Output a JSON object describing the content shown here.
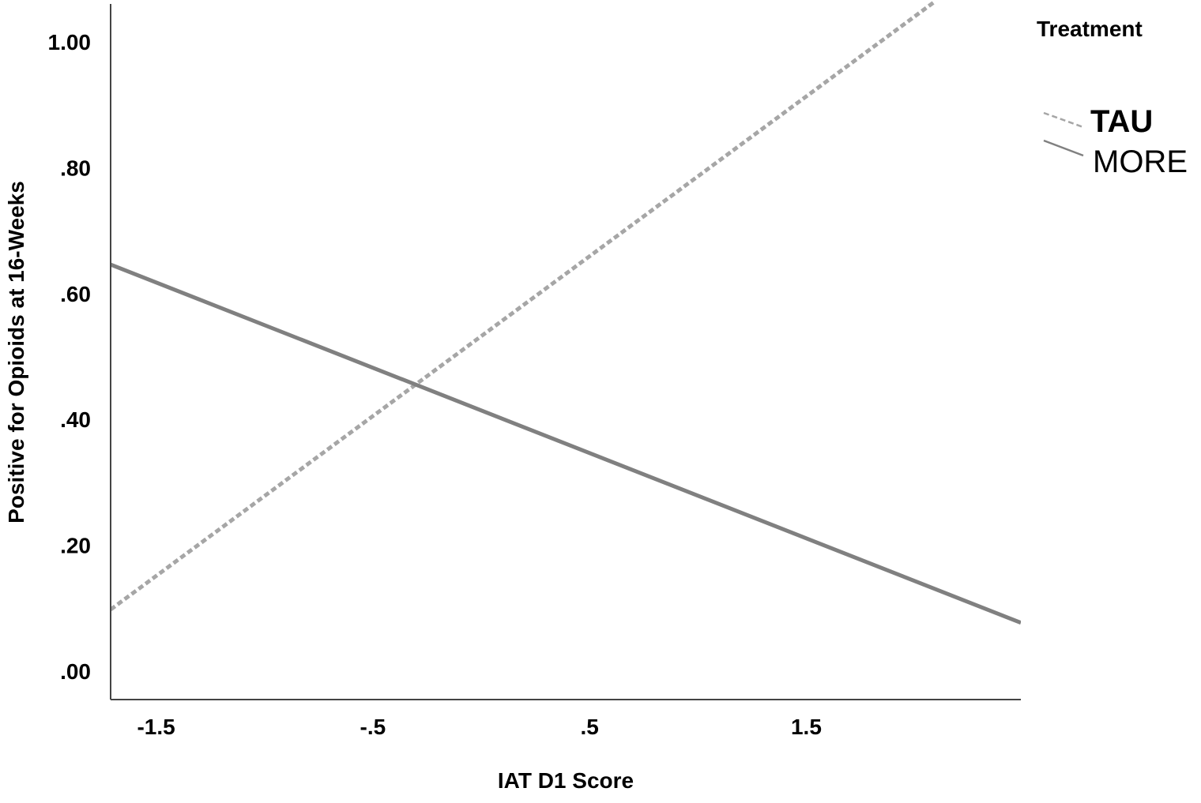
{
  "chart_data": {
    "type": "line",
    "title": "",
    "xlabel": "IAT D1 Score",
    "ylabel": "Positive for Opioids at 16-Weeks",
    "xlim": [
      -1.71,
      2.49
    ],
    "ylim": [
      -0.045,
      1.06
    ],
    "x_ticks": [
      -1.5,
      -0.5,
      0.5,
      1.5
    ],
    "x_tick_labels": [
      "-1.5",
      "-.5",
      ".5",
      "1.5"
    ],
    "y_ticks": [
      0,
      0.2,
      0.4,
      0.6,
      0.8,
      1.0
    ],
    "y_tick_labels": [
      ".00",
      ".20",
      ".40",
      ".60",
      ".80",
      "1.00"
    ],
    "grid": false,
    "legend": {
      "title": "Treatment",
      "placement": "top-right"
    },
    "series": [
      {
        "name": "TAU",
        "style": "dashed",
        "color": "#a6a6a6",
        "x": [
          -1.71,
          2.09
        ],
        "y": [
          0.098,
          1.063
        ]
      },
      {
        "name": "MORE",
        "style": "solid",
        "color": "#808080",
        "x": [
          -1.71,
          2.49
        ],
        "y": [
          0.646,
          0.077
        ]
      }
    ]
  }
}
